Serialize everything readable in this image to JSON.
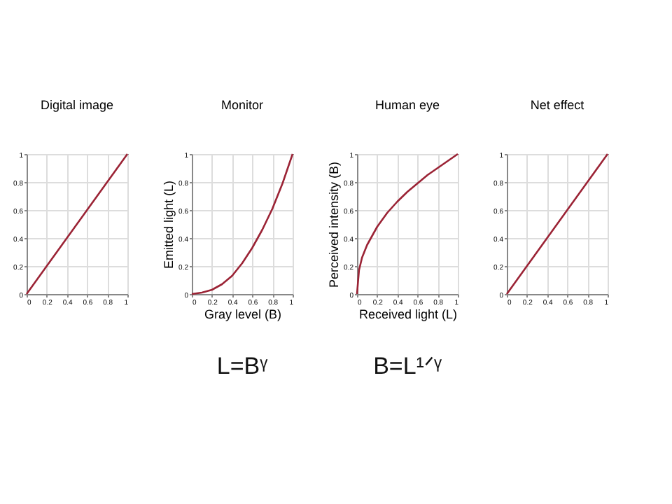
{
  "chart_data": [
    {
      "type": "line",
      "title": "Digital image",
      "x": [
        0,
        0.2,
        0.4,
        0.6,
        0.8,
        1
      ],
      "values": [
        0,
        0.2,
        0.4,
        0.6,
        0.8,
        1
      ],
      "color": "#9b2335",
      "xlim": [
        0,
        1
      ],
      "ylim": [
        0,
        1
      ],
      "xticks": [
        0,
        0.2,
        0.4,
        0.6,
        0.8,
        1
      ],
      "yticks": [
        0,
        0.2,
        0.4,
        0.6,
        0.8,
        1
      ],
      "grid": true
    },
    {
      "type": "line",
      "title": "Monitor",
      "xlabel": "Gray level (B)",
      "ylabel": "Emitted light (L)",
      "x": [
        0,
        0.1,
        0.2,
        0.3,
        0.4,
        0.5,
        0.6,
        0.7,
        0.8,
        0.9,
        1
      ],
      "values": [
        0,
        0.01,
        0.03,
        0.07,
        0.13,
        0.22,
        0.33,
        0.46,
        0.61,
        0.79,
        1
      ],
      "color": "#9b2335",
      "xlim": [
        0,
        1
      ],
      "ylim": [
        0,
        1
      ],
      "xticks": [
        0,
        0.2,
        0.4,
        0.6,
        0.8,
        1
      ],
      "yticks": [
        0,
        0.2,
        0.4,
        0.6,
        0.8,
        1
      ],
      "grid": true,
      "annotations": [
        "L=Bᵞ"
      ]
    },
    {
      "type": "line",
      "title": "Human eye",
      "xlabel": "Received light (L)",
      "ylabel": "Perceived intensity (B)",
      "x": [
        0,
        0.02,
        0.05,
        0.1,
        0.2,
        0.3,
        0.4,
        0.5,
        0.6,
        0.7,
        0.8,
        0.9,
        1
      ],
      "values": [
        0,
        0.17,
        0.26,
        0.35,
        0.48,
        0.58,
        0.66,
        0.73,
        0.79,
        0.85,
        0.9,
        0.95,
        1
      ],
      "color": "#9b2335",
      "xlim": [
        0,
        1
      ],
      "ylim": [
        0,
        1
      ],
      "xticks": [
        0,
        0.2,
        0.4,
        0.6,
        0.8,
        1
      ],
      "yticks": [
        0,
        0.2,
        0.4,
        0.6,
        0.8,
        1
      ],
      "grid": true,
      "annotations": [
        "B=L¹ᐟᵞ"
      ]
    },
    {
      "type": "line",
      "title": "Net effect",
      "x": [
        0,
        0.2,
        0.4,
        0.6,
        0.8,
        1
      ],
      "values": [
        0,
        0.2,
        0.4,
        0.6,
        0.8,
        1
      ],
      "color": "#9b2335",
      "xlim": [
        0,
        1
      ],
      "ylim": [
        0,
        1
      ],
      "xticks": [
        0,
        0.2,
        0.4,
        0.6,
        0.8,
        1
      ],
      "yticks": [
        0,
        0.2,
        0.4,
        0.6,
        0.8,
        1
      ],
      "grid": true
    }
  ]
}
